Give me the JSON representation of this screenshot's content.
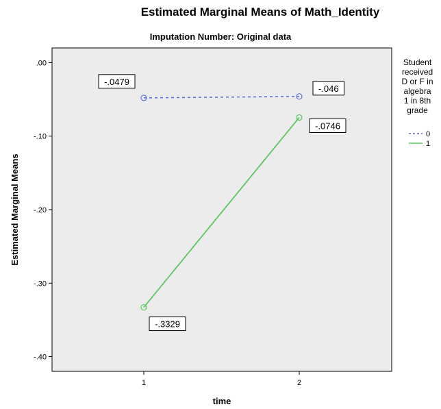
{
  "chart_data": {
    "type": "line",
    "title": "Estimated Marginal Means of Math_Identity",
    "subtitle": "Imputation Number: Original data",
    "xlabel": "time",
    "ylabel": "Estimated Marginal Means",
    "categories": [
      "1",
      "2"
    ],
    "ylim": [
      -0.42,
      0.02
    ],
    "y_ticks": [
      ".00",
      "-.10",
      "-.20",
      "-.30",
      "-.40"
    ],
    "y_tick_values": [
      0.0,
      -0.1,
      -0.2,
      -0.3,
      -0.4
    ],
    "grid": false,
    "legend": {
      "title": [
        "Student",
        "received",
        "D or F in",
        "algebra",
        "1 in 8th",
        "grade"
      ],
      "placement": "right"
    },
    "series": [
      {
        "name": "0",
        "values": [
          -0.0479,
          -0.046
        ],
        "labels": [
          "-.0479",
          "-.046"
        ],
        "color": "#5b6fd6",
        "style": "dashed"
      },
      {
        "name": "1",
        "values": [
          -0.3329,
          -0.0746
        ],
        "labels": [
          "-.3329",
          "-.0746"
        ],
        "color": "#5cc75c",
        "style": "solid"
      }
    ]
  }
}
